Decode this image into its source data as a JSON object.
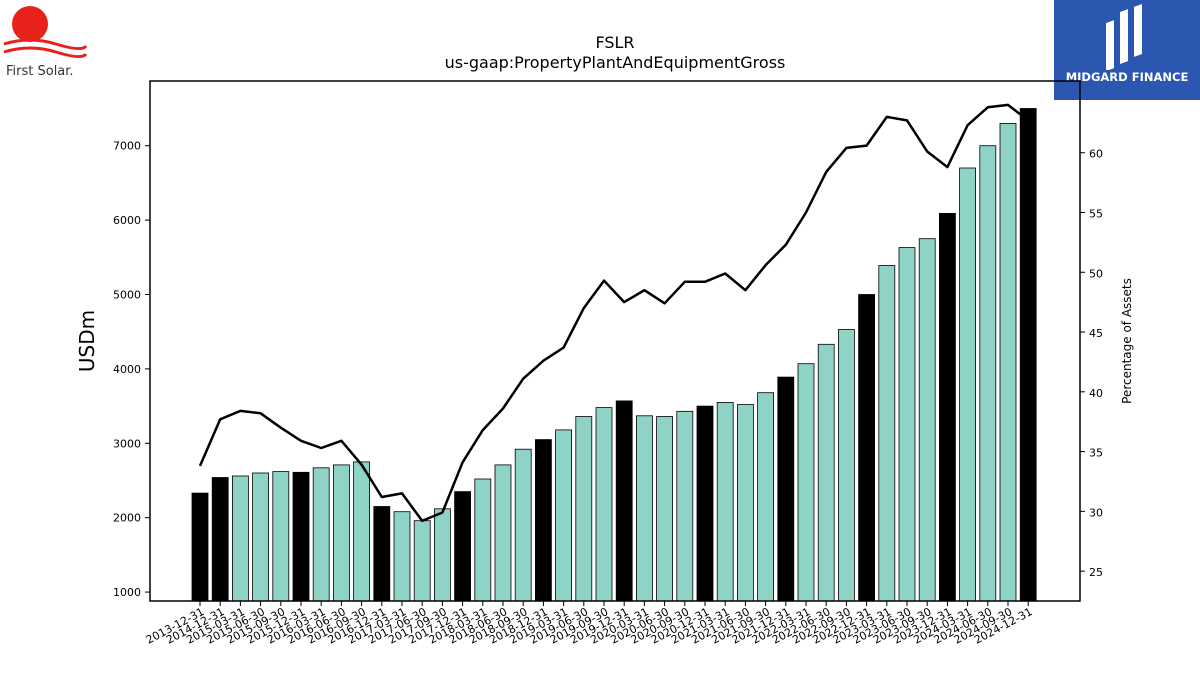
{
  "logos": {
    "left": {
      "text": "First Solar.",
      "sun_color": "#e8221b",
      "wave_color": "#e8221b"
    },
    "right": {
      "text": "MIDGARD FINANCE",
      "background": "#2b57b0"
    }
  },
  "colors": {
    "highlight_bar": "#000000",
    "regular_bar": "#8fd3c7",
    "line": "#000000"
  },
  "chart_data": {
    "type": "bar",
    "title": "FSLR",
    "subtitle": "us-gaap:PropertyPlantAndEquipmentGross",
    "ylabel": "USDm",
    "y2label": "Percentage of Assets",
    "ylim": [
      880,
      7870
    ],
    "y2lim": [
      22.5,
      66.0
    ],
    "yticks": [
      1000,
      2000,
      3000,
      4000,
      5000,
      6000,
      7000
    ],
    "y2ticks": [
      25,
      30,
      35,
      40,
      45,
      50,
      55,
      60
    ],
    "grid": false,
    "categories": [
      "2013-12-31",
      "2014-12-31",
      "2015-03-31",
      "2015-06-30",
      "2015-09-30",
      "2015-12-31",
      "2016-03-31",
      "2016-06-30",
      "2016-09-30",
      "2016-12-31",
      "2017-03-31",
      "2017-06-30",
      "2017-09-30",
      "2017-12-31",
      "2018-03-31",
      "2018-06-30",
      "2018-09-30",
      "2018-12-31",
      "2019-03-31",
      "2019-06-30",
      "2019-09-30",
      "2019-12-31",
      "2020-03-31",
      "2020-06-30",
      "2020-09-30",
      "2020-12-31",
      "2021-03-31",
      "2021-06-30",
      "2021-09-30",
      "2021-12-31",
      "2022-03-31",
      "2022-06-30",
      "2022-09-30",
      "2022-12-31",
      "2023-03-31",
      "2023-06-30",
      "2023-09-30",
      "2023-12-31",
      "2024-03-31",
      "2024-06-30",
      "2024-09-30",
      "2024-12-31"
    ],
    "series": [
      {
        "type": "bar",
        "values": [
          2330,
          2540,
          2560,
          2600,
          2620,
          2610,
          2670,
          2710,
          2750,
          2150,
          2080,
          1960,
          2120,
          2350,
          2520,
          2710,
          2920,
          3050,
          3180,
          3360,
          3480,
          3570,
          3370,
          3360,
          3430,
          3500,
          3550,
          3520,
          3680,
          3890,
          4070,
          4330,
          4530,
          5000,
          5390,
          5630,
          5750,
          6090,
          6700,
          7000,
          7300,
          7500
        ],
        "highlight": [
          true,
          true,
          false,
          false,
          false,
          true,
          false,
          false,
          false,
          true,
          false,
          false,
          false,
          true,
          false,
          false,
          false,
          true,
          false,
          false,
          false,
          true,
          false,
          false,
          false,
          true,
          false,
          false,
          false,
          true,
          false,
          false,
          false,
          true,
          false,
          false,
          false,
          true,
          false,
          false,
          false,
          true
        ]
      },
      {
        "type": "line",
        "axis": "right",
        "values": [
          33.8,
          37.7,
          38.4,
          38.2,
          37.0,
          35.9,
          35.3,
          35.9,
          33.9,
          31.2,
          31.5,
          29.2,
          29.9,
          34.1,
          36.8,
          38.6,
          41.1,
          42.6,
          43.7,
          47.0,
          49.3,
          47.5,
          48.5,
          47.4,
          49.2,
          49.2,
          49.9,
          48.5,
          50.6,
          52.3,
          55.0,
          58.4,
          60.4,
          60.6,
          63.0,
          62.7,
          60.1,
          58.8,
          62.3,
          63.8,
          64.0,
          62.7
        ]
      }
    ]
  }
}
